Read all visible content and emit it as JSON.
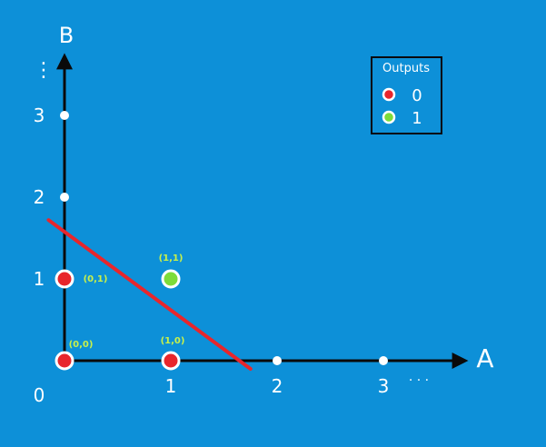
{
  "axes": {
    "x_label": "A",
    "y_label": "B",
    "origin_label": "0",
    "x_ticks": [
      {
        "value": 1,
        "label": "1"
      },
      {
        "value": 2,
        "label": "2"
      },
      {
        "value": 3,
        "label": "3"
      }
    ],
    "y_ticks": [
      {
        "value": 1,
        "label": "1"
      },
      {
        "value": 2,
        "label": "2"
      },
      {
        "value": 3,
        "label": "3"
      }
    ],
    "x_continuation": "· · ·",
    "y_continuation": "⋮"
  },
  "points": [
    {
      "x": 0,
      "y": 0,
      "label": "(0,0)",
      "output": 0
    },
    {
      "x": 1,
      "y": 0,
      "label": "(1,0)",
      "output": 0
    },
    {
      "x": 0,
      "y": 1,
      "label": "(0,1)",
      "output": 0
    },
    {
      "x": 1,
      "y": 1,
      "label": "(1,1)",
      "output": 1
    }
  ],
  "decision_line": {
    "from": [
      -0.15,
      1.72
    ],
    "to": [
      1.75,
      -0.1
    ],
    "color": "#e8262c"
  },
  "legend": {
    "title": "Outputs",
    "items": [
      {
        "label": "0",
        "color": "#e8262c"
      },
      {
        "label": "1",
        "color": "#7ddc3a"
      }
    ]
  },
  "colors": {
    "background": "#0d90d8",
    "axis": "#0a0a0a",
    "text": "#ffffff",
    "point_label": "#c8f04a",
    "tick_dot": "#ffffff"
  }
}
